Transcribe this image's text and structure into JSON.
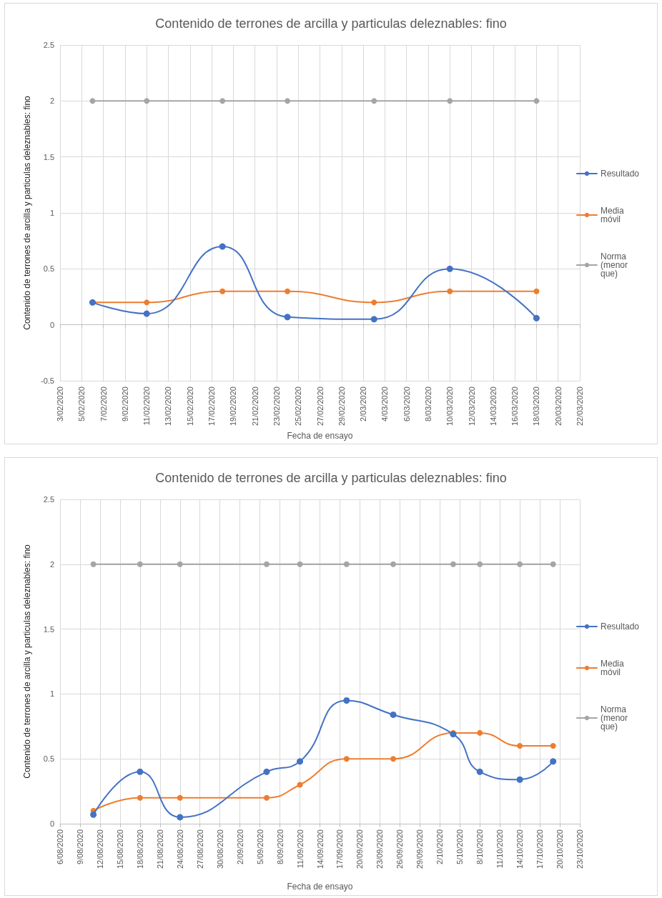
{
  "chart_data": [
    {
      "type": "line",
      "title": "Contenido de terrones de arcilla y particulas deleznables: fino",
      "xlabel": "Fecha de ensayo",
      "ylabel": "Contenido de terrones de arcilla y particulas deleznables: fino",
      "x": [
        "2020-02-06",
        "2020-02-11",
        "2020-02-18",
        "2020-02-24",
        "2020-03-03",
        "2020-03-10",
        "2020-03-18"
      ],
      "series": [
        {
          "name": "Resultado",
          "color": "#4472c4",
          "values": [
            0.2,
            0.1,
            0.7,
            0.07,
            0.05,
            0.5,
            0.06
          ]
        },
        {
          "name": "Media móvil",
          "color": "#ed7d31",
          "values": [
            0.2,
            0.2,
            0.3,
            0.3,
            0.2,
            0.3,
            0.3
          ]
        },
        {
          "name": "Norma (menor que)",
          "color": "#a5a5a5",
          "values": [
            2,
            2,
            2,
            2,
            2,
            2,
            2
          ]
        }
      ],
      "xlim": [
        "2020-02-03",
        "2020-03-22"
      ],
      "xticks": [
        {
          "value": "2020-02-03",
          "label": "3/02/2020"
        },
        {
          "value": "2020-02-05",
          "label": "5/02/2020"
        },
        {
          "value": "2020-02-07",
          "label": "7/02/2020"
        },
        {
          "value": "2020-02-09",
          "label": "9/02/2020"
        },
        {
          "value": "2020-02-11",
          "label": "11/02/2020"
        },
        {
          "value": "2020-02-13",
          "label": "13/02/2020"
        },
        {
          "value": "2020-02-15",
          "label": "15/02/2020"
        },
        {
          "value": "2020-02-17",
          "label": "17/02/2020"
        },
        {
          "value": "2020-02-19",
          "label": "19/02/2020"
        },
        {
          "value": "2020-02-21",
          "label": "21/02/2020"
        },
        {
          "value": "2020-02-23",
          "label": "23/02/2020"
        },
        {
          "value": "2020-02-25",
          "label": "25/02/2020"
        },
        {
          "value": "2020-02-27",
          "label": "27/02/2020"
        },
        {
          "value": "2020-02-29",
          "label": "29/02/2020"
        },
        {
          "value": "2020-03-02",
          "label": "2/03/2020"
        },
        {
          "value": "2020-03-04",
          "label": "4/03/2020"
        },
        {
          "value": "2020-03-06",
          "label": "6/03/2020"
        },
        {
          "value": "2020-03-08",
          "label": "8/03/2020"
        },
        {
          "value": "2020-03-10",
          "label": "10/03/2020"
        },
        {
          "value": "2020-03-12",
          "label": "12/03/2020"
        },
        {
          "value": "2020-03-14",
          "label": "14/03/2020"
        },
        {
          "value": "2020-03-16",
          "label": "16/03/2020"
        },
        {
          "value": "2020-03-18",
          "label": "18/03/2020"
        },
        {
          "value": "2020-03-20",
          "label": "20/03/2020"
        },
        {
          "value": "2020-03-22",
          "label": "22/03/2020"
        }
      ],
      "ylim": [
        -0.5,
        2.5
      ],
      "yticks": [
        -0.5,
        0,
        0.5,
        1,
        1.5,
        2,
        2.5
      ],
      "grid": true,
      "legend": "right",
      "marker": "circle",
      "line_style": "solid"
    },
    {
      "type": "line",
      "title": "Contenido de terrones de arcilla y particulas deleznables: fino",
      "xlabel": "Fecha de ensayo",
      "ylabel": "Contenido de terrones de arcilla y particulas deleznables: fino",
      "x": [
        "2020-08-11",
        "2020-08-18",
        "2020-08-24",
        "2020-09-06",
        "2020-09-11",
        "2020-09-18",
        "2020-09-25",
        "2020-10-04",
        "2020-10-08",
        "2020-10-14",
        "2020-10-19"
      ],
      "series": [
        {
          "name": "Resultado",
          "color": "#4472c4",
          "values": [
            0.07,
            0.4,
            0.05,
            0.4,
            0.48,
            0.95,
            0.84,
            0.69,
            0.4,
            0.34,
            0.48
          ]
        },
        {
          "name": "Media móvil",
          "color": "#ed7d31",
          "values": [
            0.1,
            0.2,
            0.2,
            0.2,
            0.3,
            0.5,
            0.5,
            0.7,
            0.7,
            0.6,
            0.6
          ]
        },
        {
          "name": "Norma (menor que)",
          "color": "#a5a5a5",
          "values": [
            2,
            2,
            2,
            2,
            2,
            2,
            2,
            2,
            2,
            2,
            2
          ]
        }
      ],
      "xlim": [
        "2020-08-06",
        "2020-10-23"
      ],
      "xticks": [
        {
          "value": "2020-08-06",
          "label": "6/08/2020"
        },
        {
          "value": "2020-08-09",
          "label": "9/08/2020"
        },
        {
          "value": "2020-08-12",
          "label": "12/08/2020"
        },
        {
          "value": "2020-08-15",
          "label": "15/08/2020"
        },
        {
          "value": "2020-08-18",
          "label": "18/08/2020"
        },
        {
          "value": "2020-08-21",
          "label": "21/08/2020"
        },
        {
          "value": "2020-08-24",
          "label": "24/08/2020"
        },
        {
          "value": "2020-08-27",
          "label": "27/08/2020"
        },
        {
          "value": "2020-08-30",
          "label": "30/08/2020"
        },
        {
          "value": "2020-09-02",
          "label": "2/09/2020"
        },
        {
          "value": "2020-09-05",
          "label": "5/09/2020"
        },
        {
          "value": "2020-09-08",
          "label": "8/09/2020"
        },
        {
          "value": "2020-09-11",
          "label": "11/09/2020"
        },
        {
          "value": "2020-09-14",
          "label": "14/09/2020"
        },
        {
          "value": "2020-09-17",
          "label": "17/09/2020"
        },
        {
          "value": "2020-09-20",
          "label": "20/09/2020"
        },
        {
          "value": "2020-09-23",
          "label": "23/09/2020"
        },
        {
          "value": "2020-09-26",
          "label": "26/09/2020"
        },
        {
          "value": "2020-09-29",
          "label": "29/09/2020"
        },
        {
          "value": "2020-10-02",
          "label": "2/10/2020"
        },
        {
          "value": "2020-10-05",
          "label": "5/10/2020"
        },
        {
          "value": "2020-10-08",
          "label": "8/10/2020"
        },
        {
          "value": "2020-10-11",
          "label": "11/10/2020"
        },
        {
          "value": "2020-10-14",
          "label": "14/10/2020"
        },
        {
          "value": "2020-10-17",
          "label": "17/10/2020"
        },
        {
          "value": "2020-10-20",
          "label": "20/10/2020"
        },
        {
          "value": "2020-10-23",
          "label": "23/10/2020"
        }
      ],
      "ylim": [
        0,
        2.5
      ],
      "yticks": [
        0,
        0.5,
        1,
        1.5,
        2,
        2.5
      ],
      "grid": true,
      "legend": "right",
      "marker": "circle",
      "line_style": "solid"
    }
  ]
}
